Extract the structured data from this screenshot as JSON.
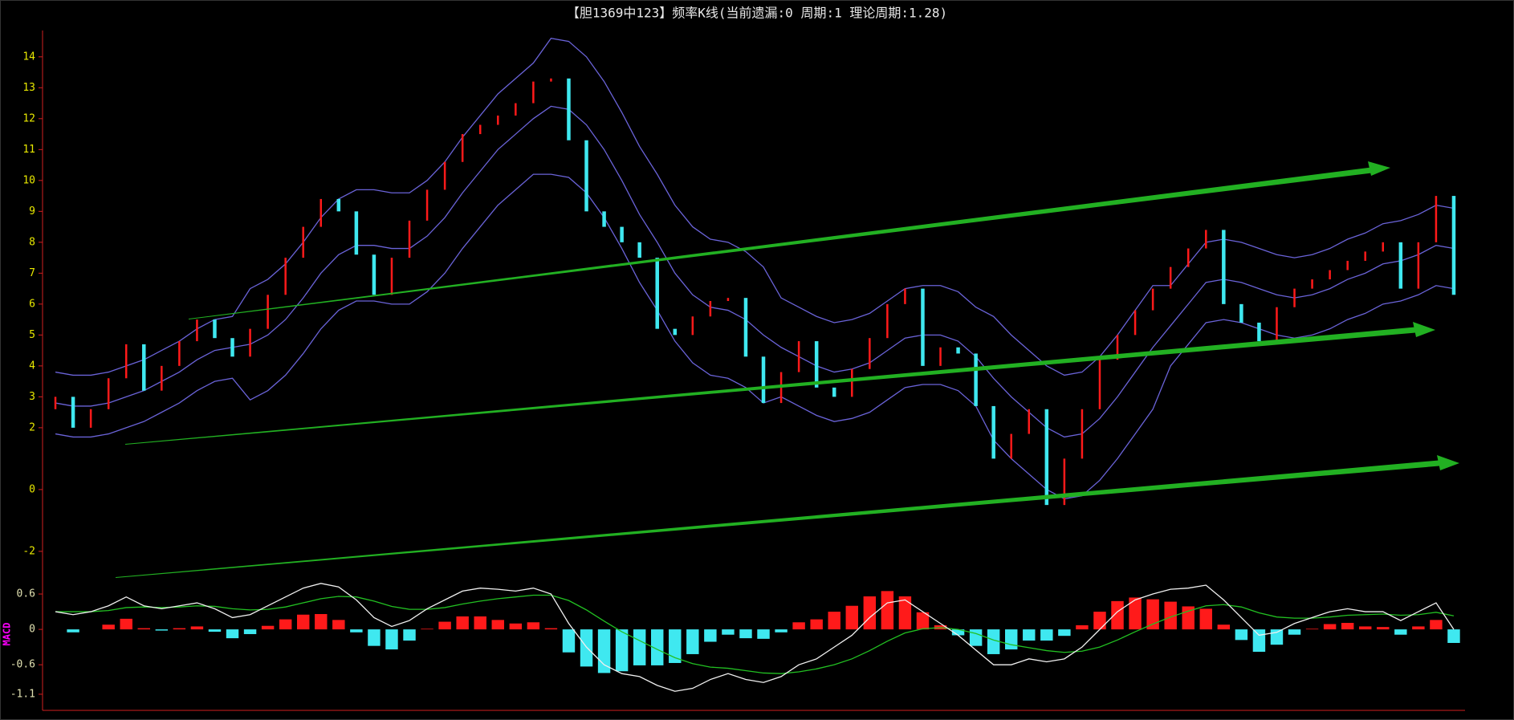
{
  "chart_data": [
    {
      "type": "candlestick",
      "title": "【胆1369中123】频率K线(当前遗漏:0 周期:1 理论周期:1.28)",
      "open": [
        2.6,
        3,
        2,
        2.6,
        3.6,
        4.7,
        3.2,
        4.0,
        4.8,
        5.5,
        4.9,
        4.3,
        5.2,
        6.3,
        7.5,
        8.5,
        9.4,
        9.0,
        7.6,
        6.3,
        7.5,
        8.7,
        9.7,
        10.6,
        11.5,
        11.8,
        12.1,
        12.5,
        13.2,
        13.3,
        11.3,
        9.0,
        8.5,
        8.0,
        7.5,
        5.2,
        5.0,
        5.6,
        6.1,
        6.2,
        4.3,
        2.8,
        3.8,
        4.8,
        3.3,
        3.0,
        3.9,
        4.9,
        6.0,
        6.5,
        4.0,
        4.6,
        4.4,
        2.7,
        1.0,
        1.8,
        2.6,
        -0.5,
        1.0,
        2.6,
        4.2,
        5.0,
        5.8,
        6.5,
        7.2,
        7.8,
        8.4,
        6.0,
        5.4,
        4.8,
        5.9,
        6.5,
        6.8,
        7.1,
        7.4,
        7.7,
        8.0,
        6.5,
        8.0,
        9.5
      ],
      "close": [
        3,
        2,
        2.6,
        3.6,
        4.7,
        3.2,
        4.0,
        4.8,
        5.5,
        4.9,
        4.3,
        5.2,
        6.3,
        7.5,
        8.5,
        9.4,
        9.0,
        7.6,
        6.3,
        7.5,
        8.7,
        9.7,
        10.6,
        11.5,
        11.8,
        12.1,
        12.5,
        13.2,
        13.3,
        11.3,
        9.0,
        8.5,
        8.0,
        7.5,
        5.2,
        5.0,
        5.6,
        6.1,
        6.2,
        4.3,
        2.8,
        3.8,
        4.8,
        3.3,
        3.0,
        3.9,
        4.9,
        6.0,
        6.5,
        4.0,
        4.6,
        4.4,
        2.7,
        1.0,
        1.8,
        2.6,
        -0.5,
        1.0,
        2.6,
        4.2,
        5.0,
        5.8,
        6.5,
        7.2,
        7.8,
        8.4,
        6.0,
        5.4,
        4.8,
        5.9,
        6.5,
        6.8,
        7.1,
        7.4,
        7.7,
        8.0,
        6.5,
        8.0,
        9.5,
        6.3
      ],
      "up_color": "#ff1a1a",
      "down_color": "#3fe8f0",
      "bands": {
        "upper": [
          3.8,
          3.7,
          3.7,
          3.8,
          4.0,
          4.2,
          4.5,
          4.8,
          5.2,
          5.5,
          5.6,
          6.5,
          6.8,
          7.3,
          8.0,
          8.8,
          9.4,
          9.7,
          9.7,
          9.6,
          9.6,
          10.0,
          10.6,
          11.4,
          12.1,
          12.8,
          13.3,
          13.8,
          14.6,
          14.5,
          14.0,
          13.2,
          12.2,
          11.1,
          10.2,
          9.2,
          8.5,
          8.1,
          8.0,
          7.7,
          7.2,
          6.2,
          5.9,
          5.6,
          5.4,
          5.5,
          5.7,
          6.1,
          6.5,
          6.6,
          6.6,
          6.4,
          5.9,
          5.6,
          5.0,
          4.5,
          4.0,
          3.7,
          3.8,
          4.3,
          5.0,
          5.8,
          6.6,
          6.6,
          7.3,
          8.0,
          8.1,
          8.0,
          7.8,
          7.6,
          7.5,
          7.6,
          7.8,
          8.1,
          8.3,
          8.6,
          8.7,
          8.9,
          9.2,
          9.1
        ],
        "mid": [
          2.8,
          2.7,
          2.7,
          2.8,
          3.0,
          3.2,
          3.5,
          3.8,
          4.2,
          4.5,
          4.6,
          4.7,
          5.0,
          5.5,
          6.2,
          7.0,
          7.6,
          7.9,
          7.9,
          7.8,
          7.8,
          8.2,
          8.8,
          9.6,
          10.3,
          11.0,
          11.5,
          12.0,
          12.4,
          12.3,
          11.8,
          11.0,
          10.0,
          8.9,
          8.0,
          7.0,
          6.3,
          5.9,
          5.8,
          5.5,
          5.0,
          4.6,
          4.3,
          4.0,
          3.8,
          3.9,
          4.1,
          4.5,
          4.9,
          5.0,
          5.0,
          4.8,
          4.3,
          3.6,
          3.0,
          2.5,
          2.0,
          1.7,
          1.8,
          2.3,
          3.0,
          3.8,
          4.6,
          5.3,
          6.0,
          6.7,
          6.8,
          6.7,
          6.5,
          6.3,
          6.2,
          6.3,
          6.5,
          6.8,
          7.0,
          7.3,
          7.4,
          7.6,
          7.9,
          7.8
        ],
        "lower": [
          1.8,
          1.7,
          1.7,
          1.8,
          2.0,
          2.2,
          2.5,
          2.8,
          3.2,
          3.5,
          3.6,
          2.9,
          3.2,
          3.7,
          4.4,
          5.2,
          5.8,
          6.1,
          6.1,
          6.0,
          6.0,
          6.4,
          7.0,
          7.8,
          8.5,
          9.2,
          9.7,
          10.2,
          10.2,
          10.1,
          9.6,
          8.8,
          7.8,
          6.7,
          5.8,
          4.8,
          4.1,
          3.7,
          3.6,
          3.3,
          2.8,
          3.0,
          2.7,
          2.4,
          2.2,
          2.3,
          2.5,
          2.9,
          3.3,
          3.4,
          3.4,
          3.2,
          2.7,
          1.6,
          1.0,
          0.5,
          0.0,
          -0.3,
          -0.2,
          0.3,
          1.0,
          1.8,
          2.6,
          4.0,
          4.7,
          5.4,
          5.5,
          5.4,
          5.2,
          5.0,
          4.9,
          5.0,
          5.2,
          5.5,
          5.7,
          6.0,
          6.1,
          6.3,
          6.6,
          6.5
        ]
      },
      "band_color": "#6a63d8",
      "ylim": [
        -2.6,
        14.8
      ],
      "yticks": [
        -2,
        0,
        2,
        3,
        4,
        5,
        6,
        7,
        8,
        9,
        10,
        11,
        12,
        13,
        14
      ]
    },
    {
      "type": "macd",
      "label": "MACD",
      "dif": [
        0.3,
        0.25,
        0.3,
        0.4,
        0.55,
        0.4,
        0.35,
        0.4,
        0.45,
        0.35,
        0.2,
        0.25,
        0.4,
        0.55,
        0.7,
        0.78,
        0.72,
        0.5,
        0.2,
        0.05,
        0.15,
        0.35,
        0.5,
        0.65,
        0.7,
        0.68,
        0.65,
        0.7,
        0.6,
        0.1,
        -0.3,
        -0.6,
        -0.75,
        -0.8,
        -0.95,
        -1.05,
        -1.0,
        -0.85,
        -0.75,
        -0.85,
        -0.9,
        -0.8,
        -0.6,
        -0.5,
        -0.3,
        -0.1,
        0.2,
        0.45,
        0.5,
        0.3,
        0.1,
        -0.1,
        -0.35,
        -0.6,
        -0.6,
        -0.5,
        -0.55,
        -0.5,
        -0.3,
        0.0,
        0.3,
        0.5,
        0.6,
        0.68,
        0.7,
        0.75,
        0.5,
        0.2,
        -0.1,
        -0.05,
        0.1,
        0.2,
        0.3,
        0.35,
        0.3,
        0.3,
        0.15,
        0.3,
        0.45,
        0.0
      ],
      "dea": [
        0.3,
        0.3,
        0.3,
        0.32,
        0.37,
        0.38,
        0.37,
        0.38,
        0.4,
        0.39,
        0.35,
        0.33,
        0.34,
        0.38,
        0.45,
        0.52,
        0.56,
        0.55,
        0.48,
        0.39,
        0.34,
        0.34,
        0.37,
        0.43,
        0.48,
        0.52,
        0.55,
        0.58,
        0.58,
        0.49,
        0.33,
        0.14,
        -0.04,
        -0.19,
        -0.34,
        -0.48,
        -0.58,
        -0.64,
        -0.66,
        -0.7,
        -0.74,
        -0.75,
        -0.72,
        -0.67,
        -0.6,
        -0.5,
        -0.36,
        -0.2,
        -0.06,
        0.01,
        0.03,
        0.0,
        -0.07,
        -0.18,
        -0.26,
        -0.31,
        -0.36,
        -0.39,
        -0.37,
        -0.3,
        -0.18,
        -0.04,
        0.09,
        0.21,
        0.31,
        0.4,
        0.42,
        0.38,
        0.28,
        0.21,
        0.19,
        0.19,
        0.21,
        0.24,
        0.25,
        0.26,
        0.24,
        0.25,
        0.29,
        0.23
      ],
      "hist": [
        0,
        -0.05,
        0,
        0.08,
        0.18,
        0.02,
        -0.02,
        0.02,
        0.05,
        -0.04,
        -0.15,
        -0.08,
        0.06,
        0.17,
        0.25,
        0.26,
        0.16,
        -0.05,
        -0.28,
        -0.34,
        -0.19,
        0.01,
        0.13,
        0.22,
        0.22,
        0.16,
        0.1,
        0.12,
        0.02,
        -0.39,
        -0.63,
        -0.74,
        -0.71,
        -0.61,
        -0.61,
        -0.57,
        -0.42,
        -0.21,
        -0.09,
        -0.15,
        -0.16,
        -0.05,
        0.12,
        0.17,
        0.3,
        0.4,
        0.56,
        0.65,
        0.56,
        0.29,
        0.07,
        -0.1,
        -0.28,
        -0.42,
        -0.34,
        -0.19,
        -0.19,
        -0.11,
        0.07,
        0.3,
        0.48,
        0.54,
        0.51,
        0.47,
        0.39,
        0.35,
        0.08,
        -0.18,
        -0.38,
        -0.26,
        -0.09,
        0.01,
        0.09,
        0.11,
        0.05,
        0.04,
        -0.09,
        0.05,
        0.16,
        -0.23
      ],
      "dif_color": "#f0f0f0",
      "dea_color": "#22c022",
      "pos_color": "#ff1a1a",
      "neg_color": "#3fe8f0",
      "ylim": [
        -1.36,
        0.9
      ],
      "yticks": [
        0.6,
        0,
        -0.6,
        -1.1
      ]
    }
  ]
}
